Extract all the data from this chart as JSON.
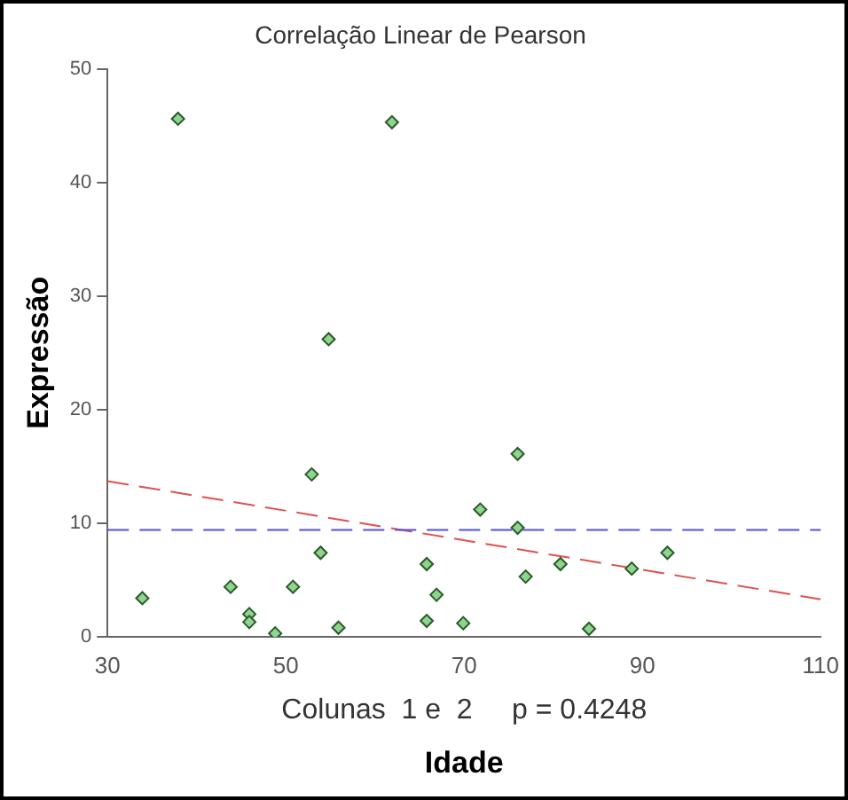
{
  "chart_data": {
    "type": "scatter",
    "title": "Correlação Linear de Pearson",
    "xlabel": "Idade",
    "ylabel": "Expressão",
    "annotations": [
      "Colunas  1 e  2     p = 0.4248"
    ],
    "series": [
      {
        "color": "#8fd48f",
        "x": [
          33.9,
          37.9,
          43.8,
          45.9,
          45.9,
          48.8,
          50.8,
          52.9,
          53.9,
          54.8,
          55.9,
          61.9,
          65.8,
          65.8,
          66.9,
          69.9,
          71.8,
          76.0,
          76.0,
          76.9,
          80.8,
          84.0,
          88.8,
          92.8
        ],
        "values": [
          3.4,
          45.6,
          4.4,
          2.0,
          1.3,
          0.3,
          4.4,
          14.3,
          7.4,
          26.2,
          0.8,
          45.3,
          6.4,
          1.4,
          3.7,
          1.2,
          11.2,
          16.1,
          9.6,
          5.3,
          6.4,
          0.7,
          6.0,
          7.4
        ]
      },
      {
        "type": "line",
        "color": "#e05050",
        "line_style": "dashed",
        "marker": "none",
        "x": [
          30,
          110
        ],
        "values": [
          13.7,
          3.3
        ]
      }
    ],
    "ref_lines": [
      {
        "axis": "y",
        "value": 9.4,
        "color": "#5050e0",
        "line_style": "dashed"
      }
    ],
    "marker": "diamond",
    "grid": false,
    "legend": false,
    "xlim": [
      30,
      110
    ],
    "xticks": [
      30,
      50,
      70,
      90,
      110
    ],
    "ylim": [
      0,
      50
    ],
    "yticks": [
      0,
      10,
      20,
      30,
      40,
      50
    ]
  }
}
